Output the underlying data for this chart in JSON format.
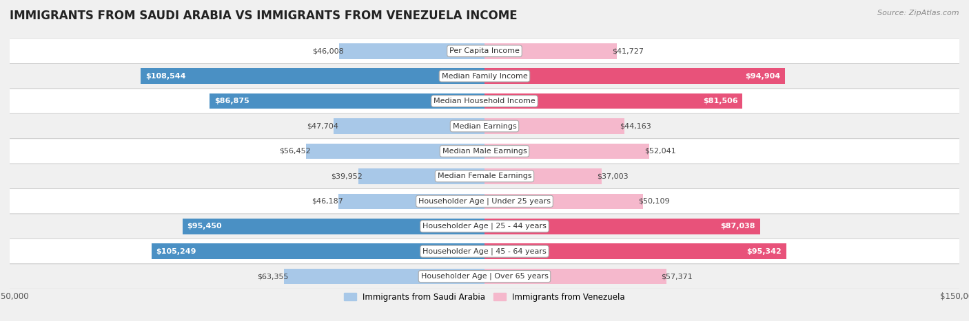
{
  "title": "IMMIGRANTS FROM SAUDI ARABIA VS IMMIGRANTS FROM VENEZUELA INCOME",
  "source": "Source: ZipAtlas.com",
  "categories": [
    "Per Capita Income",
    "Median Family Income",
    "Median Household Income",
    "Median Earnings",
    "Median Male Earnings",
    "Median Female Earnings",
    "Householder Age | Under 25 years",
    "Householder Age | 25 - 44 years",
    "Householder Age | 45 - 64 years",
    "Householder Age | Over 65 years"
  ],
  "saudi_values": [
    46008,
    108544,
    86875,
    47704,
    56452,
    39952,
    46187,
    95450,
    105249,
    63355
  ],
  "venezuela_values": [
    41727,
    94904,
    81506,
    44163,
    52041,
    37003,
    50109,
    87038,
    95342,
    57371
  ],
  "saudi_color": "#a8c8e8",
  "saudi_color_highlight": "#4a90c4",
  "venezuela_color": "#f5b8cc",
  "venezuela_color_highlight": "#e8527a",
  "highlight_threshold": 80000,
  "max_val": 150000,
  "bar_height": 0.62,
  "background_color": "#f0f0f0",
  "row_bg_even": "#ffffff",
  "row_bg_odd": "#f0f0f0",
  "label_fontsize": 8.0,
  "title_fontsize": 12,
  "source_fontsize": 8,
  "legend_fontsize": 8.5,
  "tick_fontsize": 8.5,
  "value_fontsize": 8.0
}
